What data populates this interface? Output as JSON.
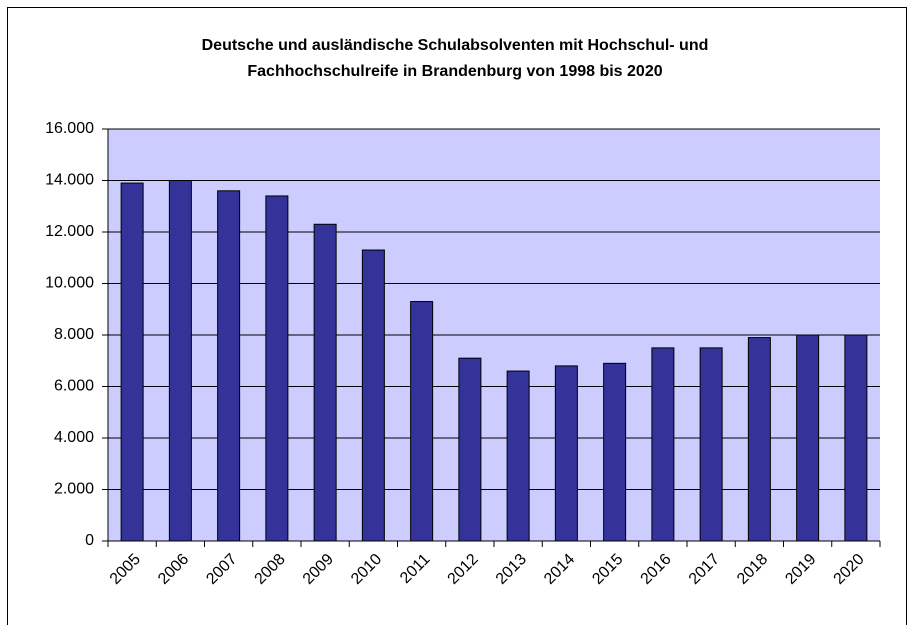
{
  "chart_data": {
    "type": "bar",
    "title": [
      "Deutsche und ausländische Schulabsolventen mit Hochschul- und",
      "Fachhochschulreife in Brandenburg von 1998 bis 2020"
    ],
    "categories": [
      "2005",
      "2006",
      "2007",
      "2008",
      "2009",
      "2010",
      "2011",
      "2012",
      "2013",
      "2014",
      "2015",
      "2016",
      "2017",
      "2018",
      "2019",
      "2020"
    ],
    "values": [
      13900,
      14000,
      13600,
      13400,
      12300,
      11300,
      9300,
      7100,
      6600,
      6800,
      6900,
      7500,
      7500,
      7900,
      8000,
      8000
    ],
    "color": "#333399",
    "ylim": [
      0,
      16000
    ],
    "yticks": [
      0,
      {
        "value": 2000,
        "label": "2.000"
      },
      {
        "value": 4000,
        "label": "4.000"
      },
      {
        "value": 6000,
        "label": "6.000"
      },
      {
        "value": 8000,
        "label": "8.000"
      },
      {
        "value": 10000,
        "label": "10.000"
      },
      {
        "value": 12000,
        "label": "12.000"
      },
      {
        "value": 14000,
        "label": "14.000"
      },
      {
        "value": 16000,
        "label": "16.000"
      }
    ],
    "grid": true
  }
}
